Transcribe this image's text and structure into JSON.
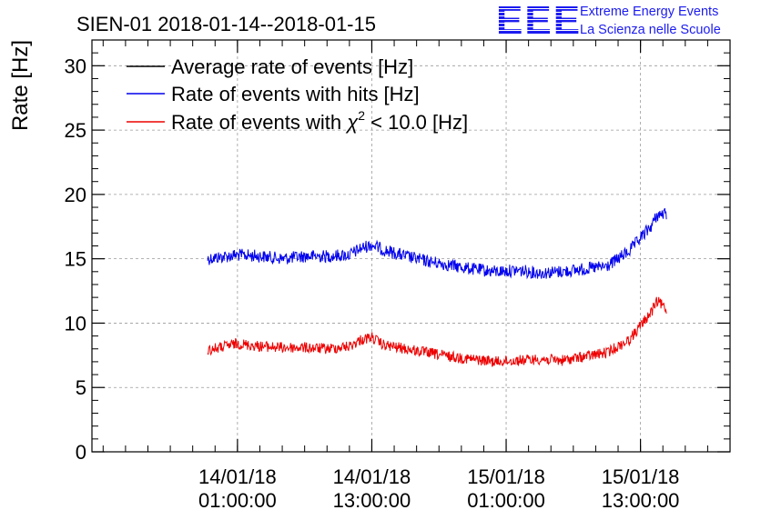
{
  "logo": {
    "letters": "EEE",
    "line1": "Extreme Energy Events",
    "line2": "La Scienza nelle Scuole"
  },
  "colors": {
    "average": "#000000",
    "hits": "#0000ee",
    "chi2": "#ee0000",
    "grid": "#9a9a9a"
  },
  "chart_data": {
    "type": "line",
    "title": "SIEN-01 2018-01-14--2018-01-15",
    "ylabel": "Rate [Hz]",
    "xlabel": "",
    "ylim": [
      0,
      32
    ],
    "xlim": [
      "2018-01-13 12:00",
      "2018-01-15 21:00"
    ],
    "grid": true,
    "legend_position": "top-left",
    "yticks": [
      0,
      5,
      10,
      15,
      20,
      25,
      30
    ],
    "xticks": [
      {
        "value": "2018-01-14 01:00",
        "date": "14/01/18",
        "time": "01:00:00"
      },
      {
        "value": "2018-01-14 13:00",
        "date": "14/01/18",
        "time": "13:00:00"
      },
      {
        "value": "2018-01-15 01:00",
        "date": "15/01/18",
        "time": "01:00:00"
      },
      {
        "value": "2018-01-15 13:00",
        "date": "15/01/18",
        "time": "13:00:00"
      }
    ],
    "series": [
      {
        "name": "Average rate of events [Hz]",
        "color": "#000000",
        "x": [],
        "y": []
      },
      {
        "name": "Rate of events with hits [Hz]",
        "color": "#0000ee",
        "x": [
          "2018-01-13 22:20",
          "2018-01-14 01:00",
          "2018-01-14 03:00",
          "2018-01-14 05:00",
          "2018-01-14 07:00",
          "2018-01-14 09:00",
          "2018-01-14 11:00",
          "2018-01-14 12:00",
          "2018-01-14 13:00",
          "2018-01-14 14:00",
          "2018-01-14 16:00",
          "2018-01-14 18:00",
          "2018-01-14 20:00",
          "2018-01-14 22:00",
          "2018-01-15 00:00",
          "2018-01-15 02:00",
          "2018-01-15 04:00",
          "2018-01-15 06:00",
          "2018-01-15 08:00",
          "2018-01-15 10:00",
          "2018-01-15 12:00",
          "2018-01-15 13:00",
          "2018-01-15 14:00",
          "2018-01-15 14:30",
          "2018-01-15 15:20"
        ],
        "y": [
          15.0,
          15.3,
          15.2,
          15.0,
          15.2,
          15.2,
          15.3,
          15.8,
          16.1,
          15.7,
          15.2,
          14.8,
          14.5,
          14.2,
          14.0,
          14.1,
          13.9,
          14.0,
          14.2,
          14.4,
          15.6,
          16.6,
          17.6,
          18.4,
          18.5
        ]
      },
      {
        "name": "Rate of events with χ² < 10.0 [Hz]",
        "name_main": "Rate of events with ",
        "name_chi": "χ",
        "name_sup": "2",
        "name_rest": " < 10.0 [Hz]",
        "color": "#ee0000",
        "x": [
          "2018-01-13 22:20",
          "2018-01-14 01:00",
          "2018-01-14 03:00",
          "2018-01-14 05:00",
          "2018-01-14 07:00",
          "2018-01-14 09:00",
          "2018-01-14 11:00",
          "2018-01-14 12:00",
          "2018-01-14 13:00",
          "2018-01-14 14:00",
          "2018-01-14 16:00",
          "2018-01-14 18:00",
          "2018-01-14 20:00",
          "2018-01-14 22:00",
          "2018-01-15 00:00",
          "2018-01-15 02:00",
          "2018-01-15 04:00",
          "2018-01-15 06:00",
          "2018-01-15 08:00",
          "2018-01-15 10:00",
          "2018-01-15 12:00",
          "2018-01-15 13:00",
          "2018-01-15 14:00",
          "2018-01-15 14:30",
          "2018-01-15 15:20"
        ],
        "y": [
          7.9,
          8.4,
          8.2,
          8.1,
          8.1,
          8.0,
          8.2,
          8.7,
          8.9,
          8.3,
          8.0,
          7.7,
          7.4,
          7.2,
          7.0,
          7.1,
          7.2,
          7.1,
          7.4,
          7.7,
          8.7,
          9.8,
          10.9,
          11.7,
          11.1
        ]
      }
    ]
  }
}
